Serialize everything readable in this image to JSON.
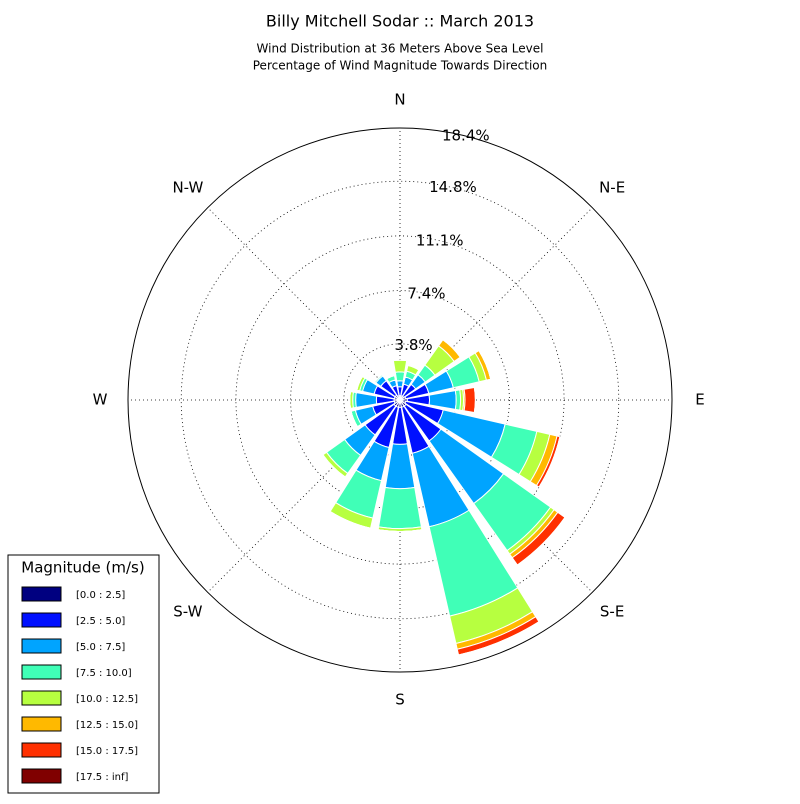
{
  "chart_data": {
    "type": "windrose",
    "title": "Billy Mitchell Sodar :: March 2013",
    "subtitle": [
      "Wind Distribution at 36 Meters Above Sea Level",
      "Percentage of Wind Magnitude Towards Direction"
    ],
    "x": [
      0,
      22.5,
      45,
      67.5,
      90,
      112.5,
      135,
      157.5,
      180,
      202.5,
      225,
      247.5,
      270,
      292.5,
      315,
      337.5
    ],
    "xticks": [
      {
        "value": 0,
        "label": "N"
      },
      {
        "value": 45,
        "label": "N-E"
      },
      {
        "value": 90,
        "label": "E"
      },
      {
        "value": 135,
        "label": "S-E"
      },
      {
        "value": 180,
        "label": "S"
      },
      {
        "value": 225,
        "label": "S-W"
      },
      {
        "value": 270,
        "label": "W"
      },
      {
        "value": 315,
        "label": "N-W"
      }
    ],
    "ylim": [
      0,
      18.4
    ],
    "yticks": [
      {
        "value": 3.8,
        "label": "3.8%"
      },
      {
        "value": 7.4,
        "label": "7.4%"
      },
      {
        "value": 11.1,
        "label": "11.1%"
      },
      {
        "value": 14.8,
        "label": "14.8%"
      },
      {
        "value": 18.4,
        "label": "18.4%"
      }
    ],
    "grid": true,
    "legend_title": "Magnitude (m/s)",
    "legend_position": "lower-left",
    "series": [
      {
        "name": "[0.0 : 2.5]",
        "color": "#000080",
        "values": [
          0.3,
          0.3,
          0.3,
          0.4,
          0.5,
          0.4,
          0.5,
          0.5,
          0.5,
          0.5,
          0.5,
          0.4,
          0.4,
          0.4,
          0.4,
          0.3
        ]
      },
      {
        "name": "[2.5 : 5.0]",
        "color": "#0010ff",
        "values": [
          0.6,
          0.8,
          1.0,
          1.6,
          1.5,
          2.6,
          2.9,
          3.2,
          2.5,
          2.8,
          2.4,
          1.5,
          1.2,
          1.4,
          1.2,
          0.7
        ]
      },
      {
        "name": "[5.0 : 7.5]",
        "color": "#00a4ff",
        "values": [
          0.4,
          0.5,
          0.8,
          1.7,
          1.8,
          4.3,
          5.2,
          5.1,
          3.0,
          2.3,
          1.7,
          1.2,
          1.4,
          0.8,
          0.4,
          0.4
        ]
      },
      {
        "name": "[7.5 : 10.0]",
        "color": "#40ffb7",
        "values": [
          0.6,
          0.4,
          0.8,
          1.8,
          0.3,
          2.2,
          3.9,
          6.2,
          2.7,
          2.6,
          1.5,
          0.3,
          0.2,
          0.2,
          0.1,
          0.3
        ]
      },
      {
        "name": "[10.0 : 12.5]",
        "color": "#b7ff40",
        "values": [
          0.8,
          0.4,
          1.6,
          0.5,
          0.2,
          0.9,
          0.3,
          1.9,
          0.2,
          0.7,
          0.3,
          0,
          0.2,
          0.2,
          0,
          0
        ]
      },
      {
        "name": "[12.5 : 15.0]",
        "color": "#ffb900",
        "values": [
          0,
          0,
          0.5,
          0.3,
          0.1,
          0.5,
          0.3,
          0.4,
          0,
          0,
          0,
          0,
          0,
          0,
          0,
          0
        ]
      },
      {
        "name": "[15.0 : 17.5]",
        "color": "#ff3000",
        "values": [
          0,
          0,
          0,
          0,
          0.7,
          0.2,
          0.6,
          0.4,
          0,
          0,
          0,
          0,
          0,
          0,
          0,
          0
        ]
      },
      {
        "name": "[17.5 : inf]",
        "color": "#800000",
        "values": [
          0,
          0,
          0,
          0,
          0,
          0,
          0,
          0,
          0,
          0,
          0,
          0,
          0,
          0,
          0,
          0
        ]
      }
    ]
  }
}
